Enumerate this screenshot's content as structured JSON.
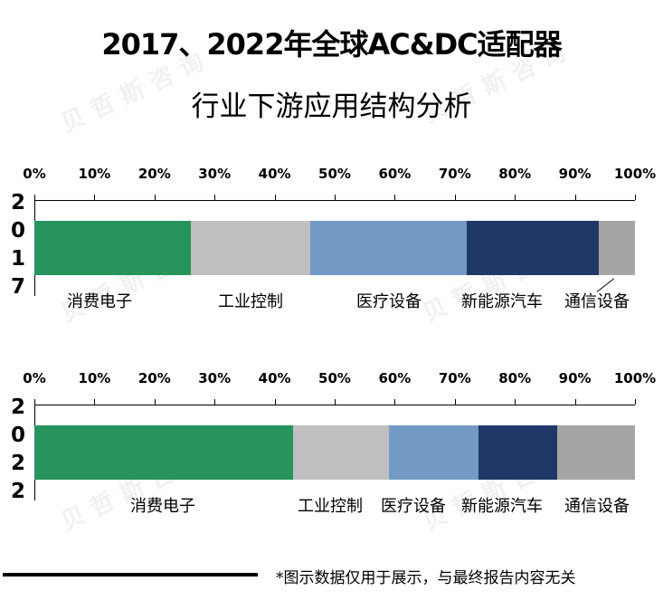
{
  "title": {
    "line1": "2017、2022年全球AC&DC适配器",
    "line2": "行业下游应用结构分析"
  },
  "watermark": "贝哲斯咨询",
  "footer_note": "*图示数据仅用于展示，与最终报告内容无关",
  "chart_data": [
    {
      "type": "bar",
      "orientation": "horizontal-stacked-100",
      "title": "2017、2022年全球AC&DC适配器行业下游应用结构分析",
      "category": "2017",
      "year_label_chars": [
        "2",
        "0",
        "1",
        "7"
      ],
      "xlim": [
        0,
        100
      ],
      "x_ticks": [
        "0%",
        "10%",
        "20%",
        "30%",
        "40%",
        "50%",
        "60%",
        "70%",
        "80%",
        "90%",
        "100%"
      ],
      "series": [
        {
          "name": "消费电子",
          "value": 26,
          "color": "#27935d"
        },
        {
          "name": "工业控制",
          "value": 20,
          "color": "#bfbfbf"
        },
        {
          "name": "医疗设备",
          "value": 26,
          "color": "#739ac5"
        },
        {
          "name": "新能源汽车",
          "value": 22,
          "color": "#1f3868"
        },
        {
          "name": "通信设备",
          "value": 6,
          "color": "#a5a5a5"
        }
      ]
    },
    {
      "type": "bar",
      "orientation": "horizontal-stacked-100",
      "category": "2022",
      "year_label_chars": [
        "2",
        "0",
        "2",
        "2"
      ],
      "xlim": [
        0,
        100
      ],
      "x_ticks": [
        "0%",
        "10%",
        "20%",
        "30%",
        "40%",
        "50%",
        "60%",
        "70%",
        "80%",
        "90%",
        "100%"
      ],
      "series": [
        {
          "name": "消费电子",
          "value": 43,
          "color": "#27935d"
        },
        {
          "name": "工业控制",
          "value": 16,
          "color": "#bfbfbf"
        },
        {
          "name": "医疗设备",
          "value": 15,
          "color": "#739ac5"
        },
        {
          "name": "新能源汽车",
          "value": 13,
          "color": "#1f3868"
        },
        {
          "name": "通信设备",
          "value": 13,
          "color": "#a5a5a5"
        }
      ]
    }
  ]
}
